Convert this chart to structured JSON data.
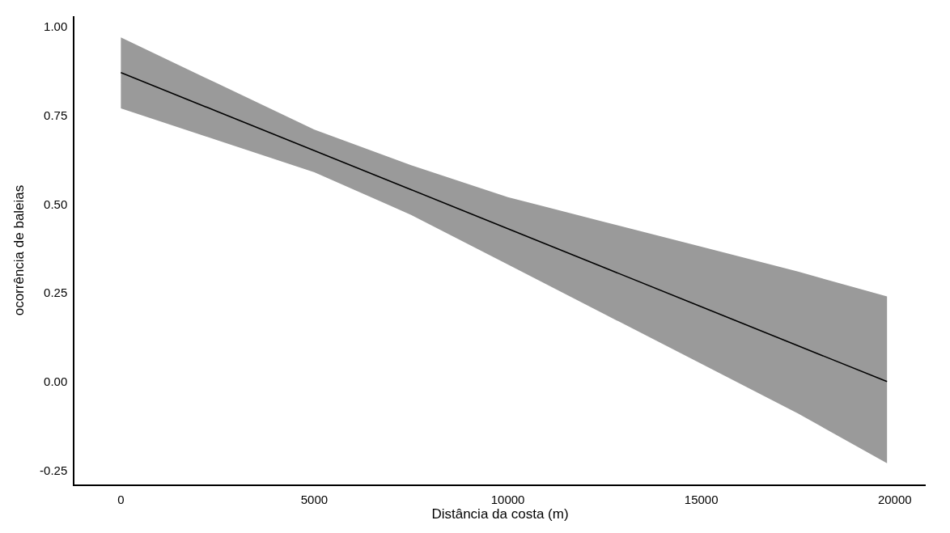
{
  "chart_data": {
    "type": "line",
    "xlabel": "Distância da costa (m)",
    "ylabel": "ocorrência de baleias",
    "xlim": [
      -1200,
      20800
    ],
    "ylim": [
      -0.29,
      1.03
    ],
    "xticks": [
      0,
      5000,
      10000,
      15000,
      20000
    ],
    "yticks": [
      {
        "value": -0.25,
        "label": "-0.25"
      },
      {
        "value": 0,
        "label": "0.00"
      },
      {
        "value": 0.25,
        "label": "0.25"
      },
      {
        "value": 0.5,
        "label": "0.50"
      },
      {
        "value": 0.75,
        "label": "0.75"
      },
      {
        "value": 1,
        "label": "1.00"
      }
    ],
    "marker": "none",
    "line_style": "solid",
    "series": [
      {
        "color": "#000000",
        "x": [
          0,
          2500,
          5000,
          7500,
          10000,
          12500,
          15000,
          17500,
          19800
        ],
        "values": [
          0.871,
          0.761,
          0.651,
          0.541,
          0.431,
          0.321,
          0.211,
          0.101,
          0.0
        ],
        "lower": [
          0.77,
          0.68,
          0.59,
          0.47,
          0.33,
          0.19,
          0.05,
          -0.09,
          -0.23
        ],
        "upper": [
          0.97,
          0.84,
          0.71,
          0.61,
          0.52,
          0.45,
          0.38,
          0.31,
          0.24
        ]
      }
    ]
  }
}
